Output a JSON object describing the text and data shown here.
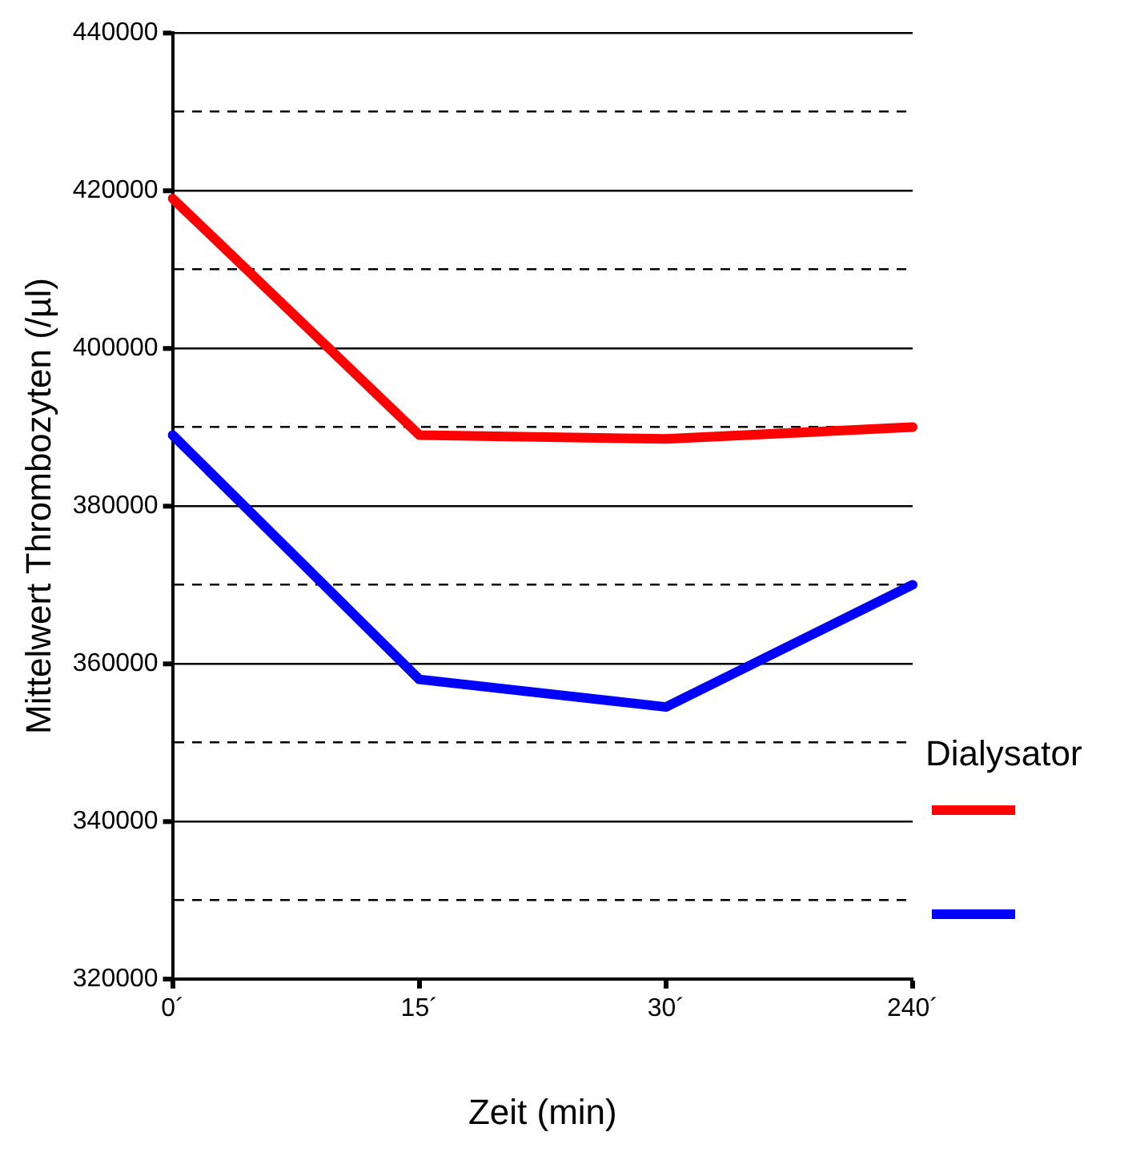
{
  "chart_data": {
    "type": "line",
    "xlabel": "Zeit (min)",
    "ylabel": "Mittelwert Thrombozyten (/µl)",
    "legend_title": "Dialysator",
    "categories": [
      "0´",
      "15´",
      "30´",
      "240´"
    ],
    "series": [
      {
        "color": "#ff0000",
        "values": [
          419000,
          389000,
          388500,
          390000
        ]
      },
      {
        "color": "#0000ff",
        "values": [
          389000,
          358000,
          354500,
          370000
        ]
      }
    ],
    "ylim": [
      320000,
      440000
    ],
    "yticks": [
      320000,
      {
        "value": 330000,
        "label": null
      },
      340000,
      {
        "value": 350000,
        "label": null
      },
      360000,
      {
        "value": 370000,
        "label": null
      },
      380000,
      {
        "value": 390000,
        "label": null
      },
      400000,
      {
        "value": 410000,
        "label": null
      },
      420000,
      {
        "value": 430000,
        "label": null
      },
      440000
    ],
    "grid": "y",
    "marker": "none",
    "line_style": "solid"
  }
}
